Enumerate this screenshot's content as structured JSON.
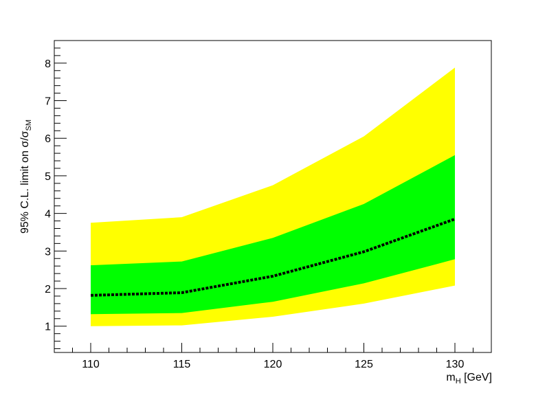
{
  "chart_data": {
    "type": "area",
    "xlabel": {
      "main": "m",
      "sub": "H",
      "rest": " [GeV]"
    },
    "ylabel": {
      "main": "95% C.L. limit on σ/σ",
      "sub": "SM"
    },
    "xlim": [
      108,
      132
    ],
    "ylim": [
      0.3,
      8.6
    ],
    "x_ticks": [
      "110",
      "115",
      "120",
      "125",
      "130"
    ],
    "y_ticks": [
      "1",
      "2",
      "3",
      "4",
      "5",
      "6",
      "7",
      "8"
    ],
    "x": [
      110,
      115,
      120,
      125,
      130
    ],
    "series": [
      {
        "role": "band95",
        "lower": [
          1.0,
          1.02,
          1.25,
          1.6,
          2.08
        ],
        "upper": [
          3.75,
          3.9,
          4.75,
          6.05,
          7.88
        ],
        "color": "#ffff00"
      },
      {
        "role": "band68",
        "lower": [
          1.32,
          1.35,
          1.65,
          2.14,
          2.78
        ],
        "upper": [
          2.62,
          2.72,
          3.35,
          4.25,
          5.55
        ],
        "color": "#00ff00"
      },
      {
        "role": "median",
        "values": [
          1.82,
          1.89,
          2.33,
          2.98,
          3.85
        ],
        "color": "#000000"
      }
    ]
  }
}
